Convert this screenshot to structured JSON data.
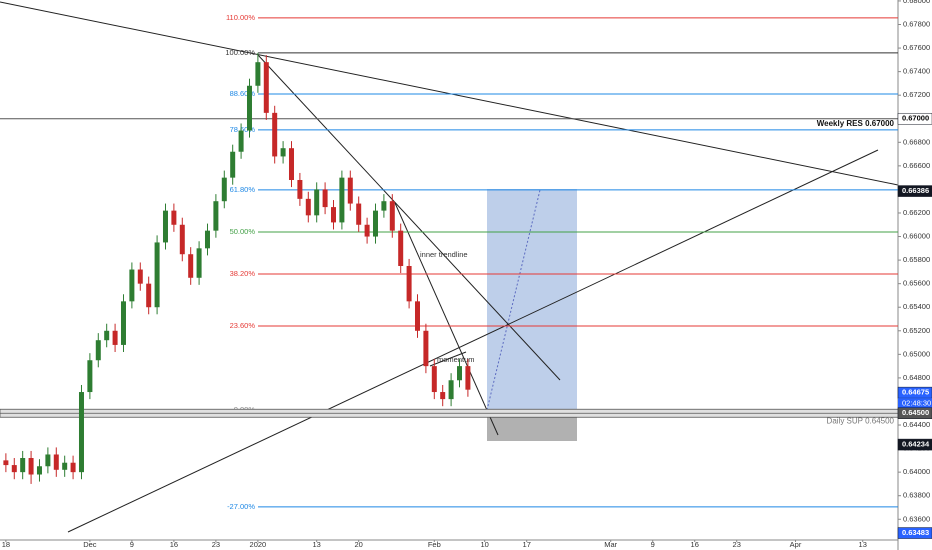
{
  "chart_data": {
    "type": "candlestick",
    "up_color": "#2e7d32",
    "down_color": "#c62828",
    "open": [
      0.641,
      0.6406,
      0.64,
      0.6412,
      0.6398,
      0.6405,
      0.6415,
      0.6402,
      0.6408,
      0.64,
      0.6468,
      0.6495,
      0.6512,
      0.652,
      0.6508,
      0.6545,
      0.6572,
      0.656,
      0.654,
      0.6595,
      0.6622,
      0.661,
      0.6585,
      0.6565,
      0.659,
      0.6605,
      0.663,
      0.665,
      0.6672,
      0.669,
      0.6728,
      0.6748,
      0.6705,
      0.6668,
      0.6675,
      0.6648,
      0.6632,
      0.6618,
      0.664,
      0.6625,
      0.6612,
      0.665,
      0.6628,
      0.661,
      0.66,
      0.6622,
      0.663,
      0.6605,
      0.6575,
      0.6545,
      0.652,
      0.649,
      0.6468,
      0.6462,
      0.6478,
      0.649
    ],
    "high": [
      0.6416,
      0.6412,
      0.6418,
      0.6418,
      0.6411,
      0.6421,
      0.6421,
      0.6414,
      0.6414,
      0.6474,
      0.6501,
      0.6518,
      0.6526,
      0.6526,
      0.6551,
      0.6578,
      0.6578,
      0.6566,
      0.6601,
      0.6628,
      0.6628,
      0.6616,
      0.6591,
      0.6596,
      0.6611,
      0.6636,
      0.6656,
      0.6678,
      0.6696,
      0.6734,
      0.6756,
      0.6754,
      0.6711,
      0.6681,
      0.6681,
      0.6654,
      0.6638,
      0.6646,
      0.6646,
      0.6631,
      0.6656,
      0.6656,
      0.6634,
      0.6616,
      0.6628,
      0.6636,
      0.6636,
      0.6611,
      0.6581,
      0.6551,
      0.6526,
      0.6496,
      0.6474,
      0.6484,
      0.6496,
      0.6496
    ],
    "low": [
      0.64,
      0.6394,
      0.6394,
      0.639,
      0.6392,
      0.6399,
      0.6396,
      0.6396,
      0.6394,
      0.6394,
      0.6462,
      0.6489,
      0.6506,
      0.6502,
      0.6502,
      0.6539,
      0.6554,
      0.6534,
      0.6534,
      0.6589,
      0.6604,
      0.6579,
      0.6559,
      0.6559,
      0.6584,
      0.6599,
      0.6624,
      0.6644,
      0.6666,
      0.6684,
      0.6722,
      0.6699,
      0.6662,
      0.6662,
      0.6642,
      0.6626,
      0.6612,
      0.6612,
      0.6619,
      0.6606,
      0.6606,
      0.6622,
      0.6604,
      0.6594,
      0.6594,
      0.6616,
      0.6599,
      0.6569,
      0.6539,
      0.6514,
      0.6484,
      0.6462,
      0.6456,
      0.6456,
      0.6472,
      0.6464
    ],
    "close": [
      0.6406,
      0.64,
      0.6412,
      0.6398,
      0.6405,
      0.6415,
      0.6402,
      0.6408,
      0.64,
      0.6468,
      0.6495,
      0.6512,
      0.652,
      0.6508,
      0.6545,
      0.6572,
      0.656,
      0.654,
      0.6595,
      0.6622,
      0.661,
      0.6585,
      0.6565,
      0.659,
      0.6605,
      0.663,
      0.665,
      0.6672,
      0.669,
      0.6728,
      0.6748,
      0.6705,
      0.6668,
      0.6675,
      0.6648,
      0.6632,
      0.6618,
      0.664,
      0.6625,
      0.6612,
      0.665,
      0.6628,
      0.661,
      0.66,
      0.6622,
      0.663,
      0.6605,
      0.6575,
      0.6545,
      0.652,
      0.649,
      0.6468,
      0.6462,
      0.6478,
      0.649,
      0.647
    ],
    "xlim": [
      -0.7,
      106.2
    ],
    "xticks": [
      {
        "value": 0,
        "label": "18"
      },
      {
        "value": 10,
        "label": "Dec"
      },
      {
        "value": 15,
        "label": "9"
      },
      {
        "value": 20,
        "label": "16"
      },
      {
        "value": 25,
        "label": "23"
      },
      {
        "value": 30,
        "label": "2020"
      },
      {
        "value": 37,
        "label": "13"
      },
      {
        "value": 42,
        "label": "20"
      },
      {
        "value": 51,
        "label": "Feb"
      },
      {
        "value": 57,
        "label": "10"
      },
      {
        "value": 62,
        "label": "17"
      },
      {
        "value": 72,
        "label": "Mar"
      },
      {
        "value": 77,
        "label": "9"
      },
      {
        "value": 82,
        "label": "16"
      },
      {
        "value": 87,
        "label": "23"
      },
      {
        "value": 94,
        "label": "Apr"
      },
      {
        "value": 102,
        "label": "13"
      }
    ],
    "ylim": [
      0.63424,
      0.68008
    ],
    "yticks": [
      {
        "value": 0.636,
        "label": "0.63600"
      },
      {
        "value": 0.638,
        "label": "0.63800"
      },
      {
        "value": 0.64,
        "label": "0.64000"
      },
      {
        "value": 0.642,
        "label": "0.64200"
      },
      {
        "value": 0.644,
        "label": "0.64400"
      },
      {
        "value": 0.646,
        "label": "0.64600"
      },
      {
        "value": 0.648,
        "label": "0.64800"
      },
      {
        "value": 0.65,
        "label": "0.65000"
      },
      {
        "value": 0.652,
        "label": "0.65200"
      },
      {
        "value": 0.654,
        "label": "0.65400"
      },
      {
        "value": 0.656,
        "label": "0.65600"
      },
      {
        "value": 0.658,
        "label": "0.65800"
      },
      {
        "value": 0.66,
        "label": "0.66000"
      },
      {
        "value": 0.662,
        "label": "0.66200"
      },
      {
        "value": 0.664,
        "label": "0.66400"
      },
      {
        "value": 0.666,
        "label": "0.66600"
      },
      {
        "value": 0.668,
        "label": "0.66800"
      },
      {
        "value": 0.67,
        "label": "0.67000"
      },
      {
        "value": 0.672,
        "label": "0.67200"
      },
      {
        "value": 0.674,
        "label": "0.67400"
      },
      {
        "value": 0.676,
        "label": "0.67600"
      },
      {
        "value": 0.678,
        "label": "0.67800"
      },
      {
        "value": 0.68,
        "label": "0.68000"
      }
    ],
    "fib_levels": [
      {
        "label": "110.00%",
        "price": 0.67856,
        "color": "#e53935"
      },
      {
        "label": "100.00%",
        "price": 0.67559,
        "color": "#333333"
      },
      {
        "label": "88.60%",
        "price": 0.6721,
        "color": "#1e88e5"
      },
      {
        "label": "78.60%",
        "price": 0.66905,
        "color": "#1e88e5"
      },
      {
        "label": "61.80%",
        "price": 0.66396,
        "color": "#1e88e5"
      },
      {
        "label": "50.00%",
        "price": 0.66039,
        "color": "#43a047"
      },
      {
        "label": "38.20%",
        "price": 0.65682,
        "color": "#e53935"
      },
      {
        "label": "23.60%",
        "price": 0.65241,
        "color": "#e53935"
      },
      {
        "label": "0.00%",
        "price": 0.64528,
        "color": "#888888"
      },
      {
        "label": "-27.00%",
        "price": 0.63705,
        "color": "#1e88e5"
      }
    ],
    "resistance": {
      "label": "Weekly RES 0.67000",
      "price": 0.67
    },
    "support": {
      "label": "Daily SUP 0.64500",
      "price": 0.645
    },
    "annotations": [
      "inner trendline",
      "momentum"
    ],
    "price_labels": [
      {
        "value": 0.67,
        "label": "0.67000",
        "color": "#ffffff"
      },
      {
        "value": 0.66386,
        "label": "0.66386",
        "color": "#131722"
      },
      {
        "value": 0.64675,
        "label": "0.64675",
        "color": "#2962ff"
      },
      {
        "value": 0.645,
        "label": "0.64500",
        "color": "#555555"
      },
      {
        "value": 0.64234,
        "label": "0.64234",
        "color": "#131722"
      },
      {
        "value": 0.63483,
        "label": "0.63483",
        "color": "#2962ff"
      }
    ],
    "countdown": "02:48:30"
  }
}
